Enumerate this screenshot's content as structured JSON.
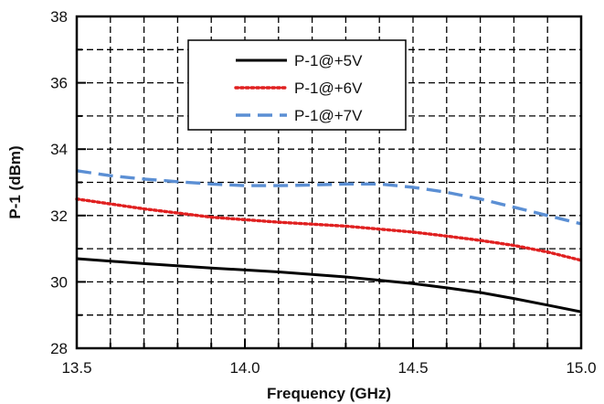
{
  "chart_data": {
    "type": "line",
    "title": "",
    "xlabel": "Frequency (GHz)",
    "ylabel": "P-1 (dBm)",
    "xlim": [
      13.5,
      15.0
    ],
    "ylim": [
      28,
      38
    ],
    "x_ticks": [
      13.5,
      14.0,
      14.5,
      15.0
    ],
    "x_tick_labels": [
      "13.5",
      "14.0",
      "14.5",
      "15.0"
    ],
    "y_ticks": [
      28,
      30,
      32,
      34,
      36,
      38
    ],
    "y_tick_labels": [
      "28",
      "30",
      "32",
      "34",
      "36",
      "38"
    ],
    "grid": true,
    "legend_position": "top-center",
    "series": [
      {
        "name": "P-1@+5V",
        "color": "#000000",
        "style": "solid",
        "x": [
          13.5,
          13.7,
          13.9,
          14.1,
          14.3,
          14.5,
          14.6,
          14.7,
          14.8,
          14.9,
          15.0
        ],
        "y": [
          30.7,
          30.55,
          30.42,
          30.3,
          30.15,
          29.95,
          29.82,
          29.68,
          29.5,
          29.3,
          29.1
        ]
      },
      {
        "name": "P-1@+6V",
        "color": "#e02020",
        "style": "dotted",
        "x": [
          13.5,
          13.7,
          13.9,
          14.1,
          14.3,
          14.5,
          14.6,
          14.7,
          14.8,
          14.9,
          15.0
        ],
        "y": [
          32.5,
          32.2,
          31.95,
          31.8,
          31.68,
          31.5,
          31.38,
          31.25,
          31.1,
          30.9,
          30.65
        ]
      },
      {
        "name": "P-1@+7V",
        "color": "#5b8fd4",
        "style": "dashed",
        "x": [
          13.5,
          13.6,
          13.7,
          13.8,
          13.9,
          14.0,
          14.1,
          14.2,
          14.3,
          14.4,
          14.5,
          14.6,
          14.7,
          14.8,
          14.9,
          15.0
        ],
        "y": [
          33.35,
          33.2,
          33.1,
          33.02,
          32.95,
          32.9,
          32.9,
          32.92,
          32.95,
          32.95,
          32.85,
          32.7,
          32.5,
          32.25,
          32.0,
          31.75
        ]
      }
    ]
  }
}
